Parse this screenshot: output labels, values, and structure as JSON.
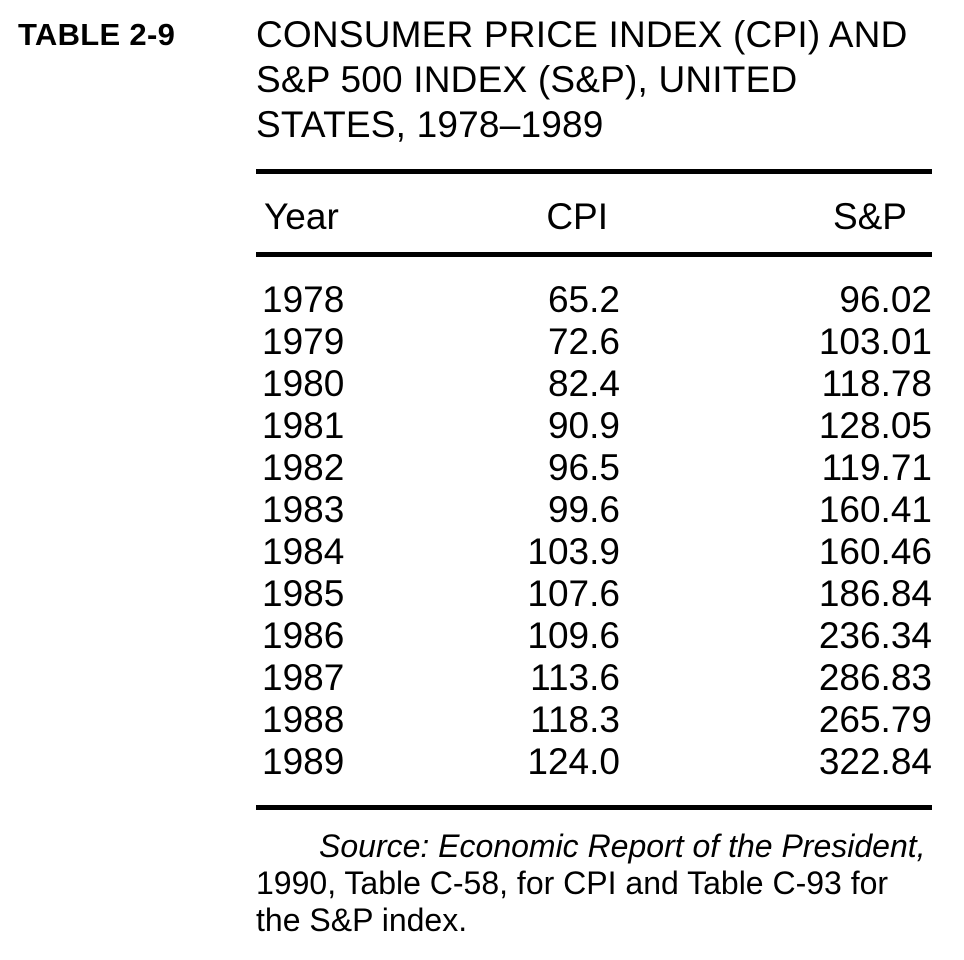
{
  "table_label": "TABLE 2-9",
  "title": {
    "line1": "CONSUMER PRICE INDEX (CPI) AND",
    "line2": "S&P 500 INDEX (S&P), UNITED",
    "line3": "STATES, 1978–1989"
  },
  "table": {
    "columns": [
      "Year",
      "CPI",
      "S&P"
    ],
    "rows": [
      {
        "year": "1978",
        "cpi": "65.2",
        "sp": "96.02"
      },
      {
        "year": "1979",
        "cpi": "72.6",
        "sp": "103.01"
      },
      {
        "year": "1980",
        "cpi": "82.4",
        "sp": "118.78"
      },
      {
        "year": "1981",
        "cpi": "90.9",
        "sp": "128.05"
      },
      {
        "year": "1982",
        "cpi": "96.5",
        "sp": "119.71"
      },
      {
        "year": "1983",
        "cpi": "99.6",
        "sp": "160.41"
      },
      {
        "year": "1984",
        "cpi": "103.9",
        "sp": "160.46"
      },
      {
        "year": "1985",
        "cpi": "107.6",
        "sp": "186.84"
      },
      {
        "year": "1986",
        "cpi": "109.6",
        "sp": "236.34"
      },
      {
        "year": "1987",
        "cpi": "113.6",
        "sp": "286.83"
      },
      {
        "year": "1988",
        "cpi": "118.3",
        "sp": "265.79"
      },
      {
        "year": "1989",
        "cpi": "124.0",
        "sp": "322.84"
      }
    ]
  },
  "footnote": {
    "line1": "Source: Economic Report of the President,",
    "line2": "1990, Table C-58, for CPI and Table C-93 for",
    "line3": "the S&P index."
  },
  "colors": {
    "text": "#000000",
    "background": "#ffffff"
  },
  "chart_data": {
    "type": "table",
    "title": "CONSUMER PRICE INDEX (CPI) AND S&P 500 INDEX (S&P), UNITED STATES, 1978–1989",
    "columns": [
      "Year",
      "CPI",
      "S&P"
    ],
    "years": [
      1978,
      1979,
      1980,
      1981,
      1982,
      1983,
      1984,
      1985,
      1986,
      1987,
      1988,
      1989
    ],
    "series": [
      {
        "name": "CPI",
        "values": [
          65.2,
          72.6,
          82.4,
          90.9,
          96.5,
          99.6,
          103.9,
          107.6,
          109.6,
          113.6,
          118.3,
          124.0
        ]
      },
      {
        "name": "S&P",
        "values": [
          96.02,
          103.01,
          118.78,
          128.05,
          119.71,
          160.41,
          160.46,
          186.84,
          236.34,
          286.83,
          265.79,
          322.84
        ]
      }
    ],
    "source": "Source: Economic Report of the President, 1990, Table C-58, for CPI and Table C-93 for the S&P index."
  }
}
